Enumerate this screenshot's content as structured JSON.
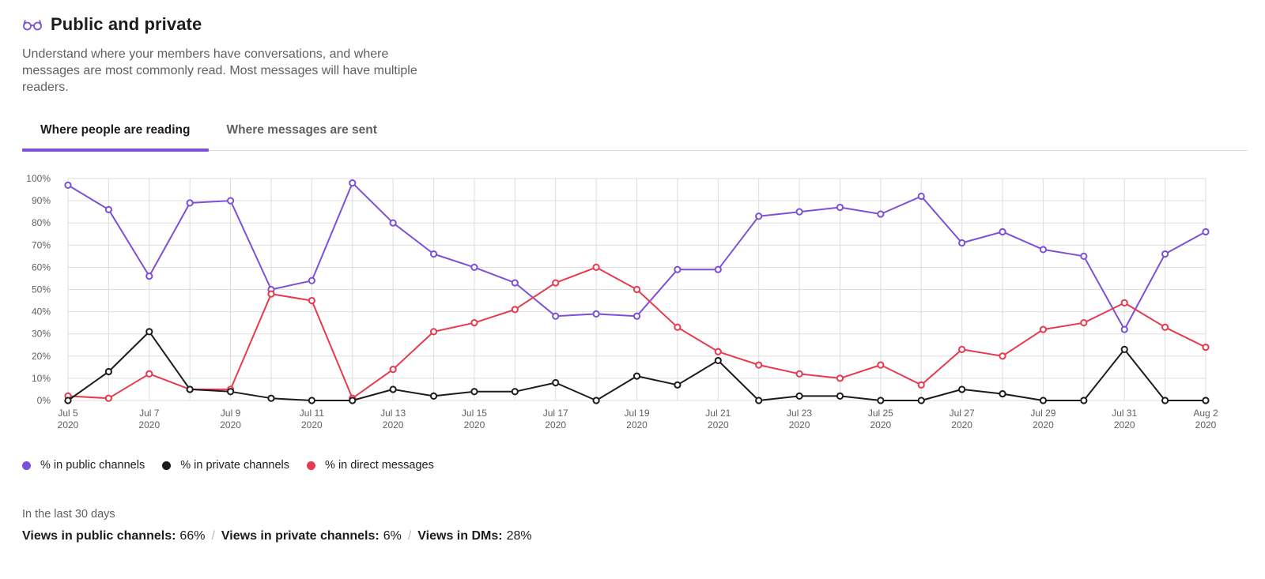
{
  "header": {
    "title": "Public and private",
    "description": "Understand where your members have conversations, and where messages are most commonly read. Most messages will have multiple readers."
  },
  "tabs": [
    {
      "label": "Where people are reading",
      "active": true
    },
    {
      "label": "Where messages are sent",
      "active": false
    }
  ],
  "colors": {
    "public": "#7c50d8",
    "private": "#1d1c1d",
    "dm": "#e8394f",
    "grid": "#dddddd",
    "accent": "#7c50d8"
  },
  "chart_data": {
    "type": "line",
    "x_tick_labels": [
      [
        "Jul 5",
        "2020"
      ],
      [
        "Jul 7",
        "2020"
      ],
      [
        "Jul 9",
        "2020"
      ],
      [
        "Jul 11",
        "2020"
      ],
      [
        "Jul 13",
        "2020"
      ],
      [
        "Jul 15",
        "2020"
      ],
      [
        "Jul 17",
        "2020"
      ],
      [
        "Jul 19",
        "2020"
      ],
      [
        "Jul 21",
        "2020"
      ],
      [
        "Jul 23",
        "2020"
      ],
      [
        "Jul 25",
        "2020"
      ],
      [
        "Jul 27",
        "2020"
      ],
      [
        "Jul 29",
        "2020"
      ],
      [
        "Jul 31",
        "2020"
      ],
      [
        "Aug 2",
        "2020"
      ]
    ],
    "y_tick_labels": [
      "0%",
      "10%",
      "20%",
      "30%",
      "40%",
      "50%",
      "60%",
      "70%",
      "80%",
      "90%",
      "100%"
    ],
    "ylim": [
      0,
      100
    ],
    "num_points": 29,
    "series": [
      {
        "name": "% in public channels",
        "color_key": "public",
        "values": [
          97,
          86,
          56,
          89,
          90,
          50,
          54,
          98,
          80,
          66,
          60,
          53,
          38,
          39,
          38,
          59,
          59,
          83,
          85,
          87,
          84,
          92,
          71,
          76,
          68,
          65,
          32,
          66,
          76
        ]
      },
      {
        "name": "% in private channels",
        "color_key": "private",
        "values": [
          0,
          13,
          31,
          5,
          4,
          1,
          0,
          0,
          5,
          2,
          4,
          4,
          8,
          0,
          11,
          7,
          18,
          0,
          2,
          2,
          0,
          0,
          5,
          3,
          0,
          0,
          23,
          0,
          0
        ]
      },
      {
        "name": "% in direct messages",
        "color_key": "dm",
        "values": [
          2,
          1,
          12,
          5,
          5,
          48,
          45,
          1,
          14,
          31,
          35,
          41,
          53,
          60,
          50,
          33,
          22,
          16,
          12,
          10,
          16,
          7,
          23,
          20,
          32,
          35,
          44,
          33,
          24
        ]
      }
    ]
  },
  "legend": [
    {
      "label": "% in public channels",
      "color_key": "public"
    },
    {
      "label": "% in private channels",
      "color_key": "private"
    },
    {
      "label": "% in direct messages",
      "color_key": "dm"
    }
  ],
  "summary": {
    "period_label": "In the last 30 days",
    "public_label": "Views in public channels:",
    "public_value": "66%",
    "private_label": "Views in private channels:",
    "private_value": "6%",
    "dm_label": "Views in DMs:",
    "dm_value": "28%",
    "separator": "/"
  }
}
